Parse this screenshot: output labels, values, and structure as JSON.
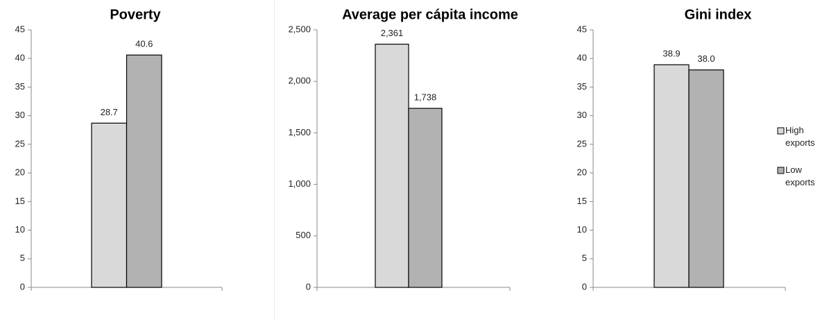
{
  "chart_data": [
    {
      "type": "bar",
      "title": "Poverty",
      "categories": [
        null
      ],
      "series": [
        {
          "color": "#d9d9d9",
          "values": [
            28.7
          ]
        },
        {
          "color": "#b2b2b2",
          "values": [
            40.6
          ]
        }
      ],
      "ylim": [
        0,
        45
      ],
      "yticks": [
        0,
        5,
        10,
        15,
        20,
        25,
        30,
        35,
        40,
        45
      ]
    },
    {
      "type": "bar",
      "title": "Average per cápita income",
      "categories": [
        null
      ],
      "series": [
        {
          "color": "#d9d9d9",
          "values": [
            2361
          ],
          "value_labels": [
            "2,361"
          ]
        },
        {
          "color": "#b2b2b2",
          "values": [
            1738
          ],
          "value_labels": [
            "1,738"
          ]
        }
      ],
      "ylim": [
        0,
        2500
      ],
      "yticks": [
        0,
        500,
        {
          "value": 1000,
          "label": "1,000"
        },
        {
          "value": 1500,
          "label": "1,500"
        },
        {
          "value": 2000,
          "label": "2,000"
        },
        {
          "value": 2500,
          "label": "2,500"
        }
      ]
    },
    {
      "type": "bar",
      "title": "Gini index",
      "categories": [
        null
      ],
      "series": [
        {
          "name": "High exports",
          "color": "#d9d9d9",
          "values": [
            38.9
          ]
        },
        {
          "name": "Low exports",
          "color": "#b2b2b2",
          "values": [
            38
          ],
          "value_labels": [
            "38.0"
          ]
        }
      ],
      "ylim": [
        0,
        45
      ],
      "yticks": [
        0,
        5,
        10,
        15,
        20,
        25,
        30,
        35,
        40,
        45
      ],
      "legend": "right"
    }
  ]
}
